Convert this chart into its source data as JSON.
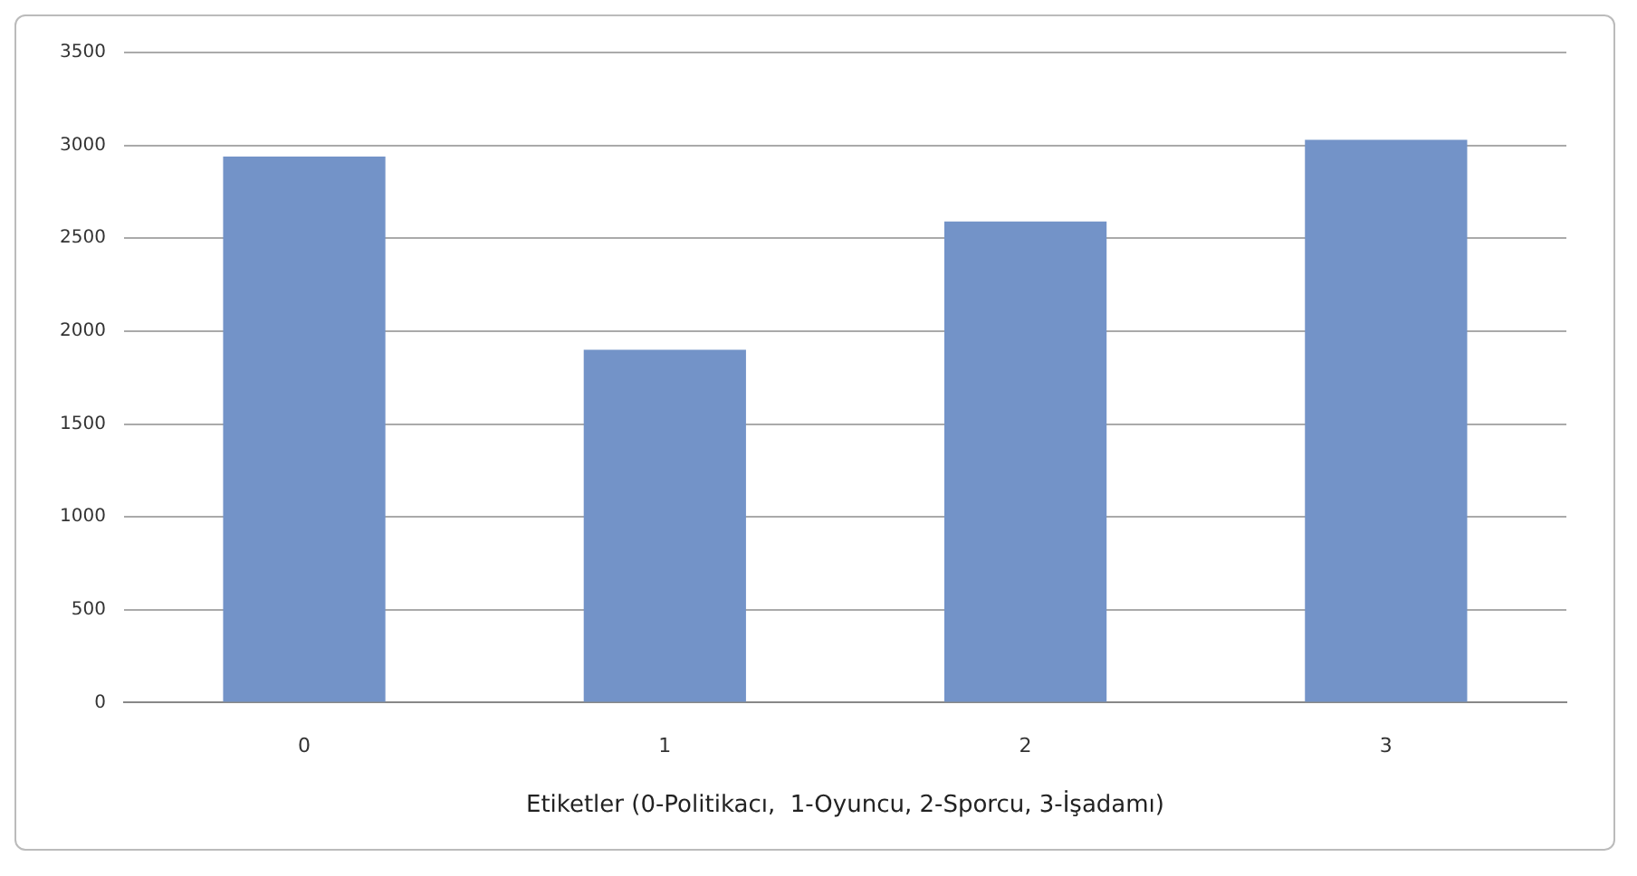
{
  "chart_data": {
    "type": "bar",
    "xlabel": "Etiketler (0-Politikacı,  1-Oyuncu, 2-Sporcu, 3-İşadamı)",
    "categories": [
      "0",
      "1",
      "2",
      "3"
    ],
    "values": [
      2940,
      1900,
      2590,
      3030
    ],
    "color": "#7393c8",
    "ylim": [
      0,
      3500
    ],
    "yticks": [
      0,
      500,
      1000,
      1500,
      2000,
      2500,
      3000,
      3500
    ],
    "grid": "y"
  }
}
